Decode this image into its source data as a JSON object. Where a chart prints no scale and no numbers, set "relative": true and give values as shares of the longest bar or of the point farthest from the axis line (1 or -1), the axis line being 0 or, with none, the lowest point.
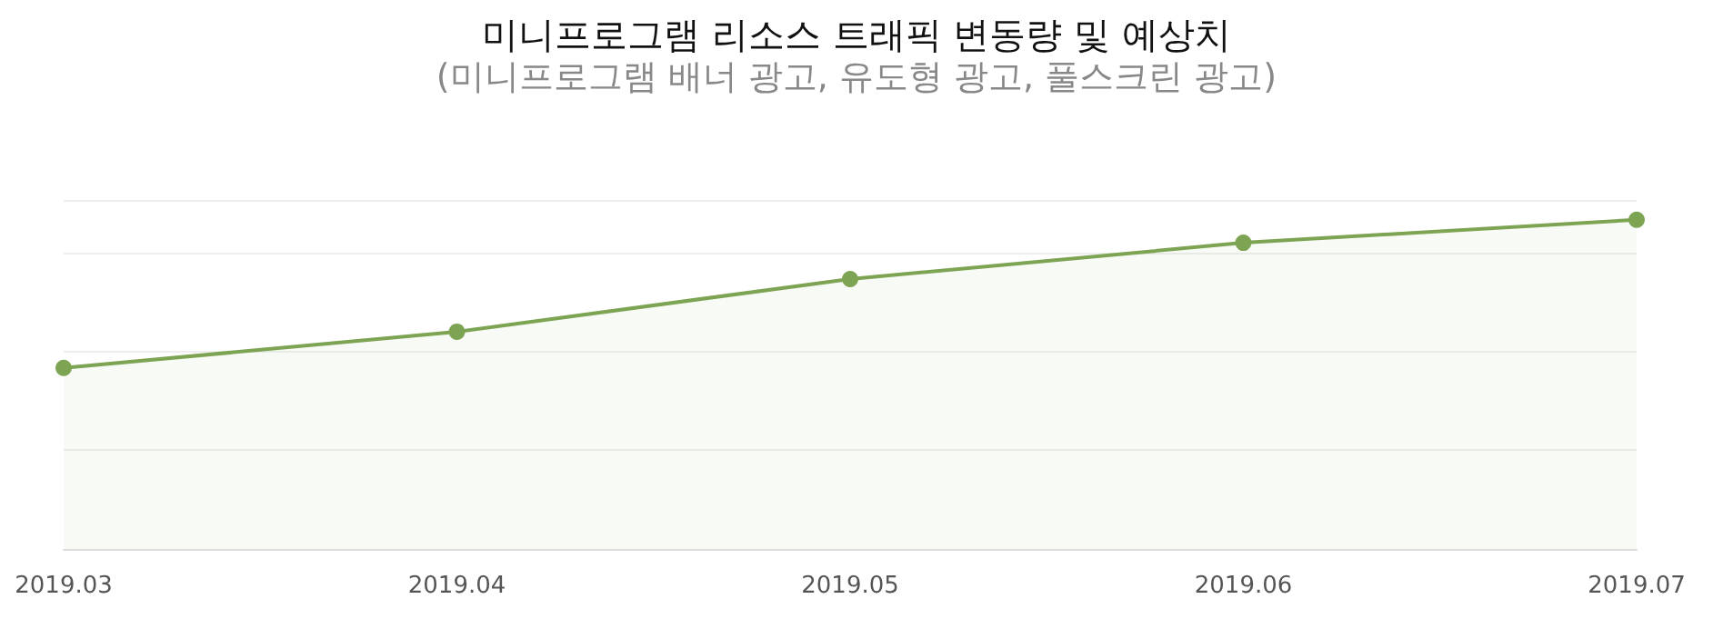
{
  "chart_data": {
    "type": "area",
    "title": "미니프로그램 리소스 트래픽 변동량 및 예상치",
    "subtitle": "(미니프로그램 배너 광고, 유도형 광고, 풀스크린 광고)",
    "categories": [
      "2019.03",
      "2019.04",
      "2019.05",
      "2019.06",
      "2019.07"
    ],
    "series": [
      {
        "color": "#7da453",
        "values": [
          0.55,
          0.66,
          0.82,
          0.93,
          1
        ]
      }
    ],
    "relative": true,
    "grid": "y",
    "marker": "circle"
  }
}
